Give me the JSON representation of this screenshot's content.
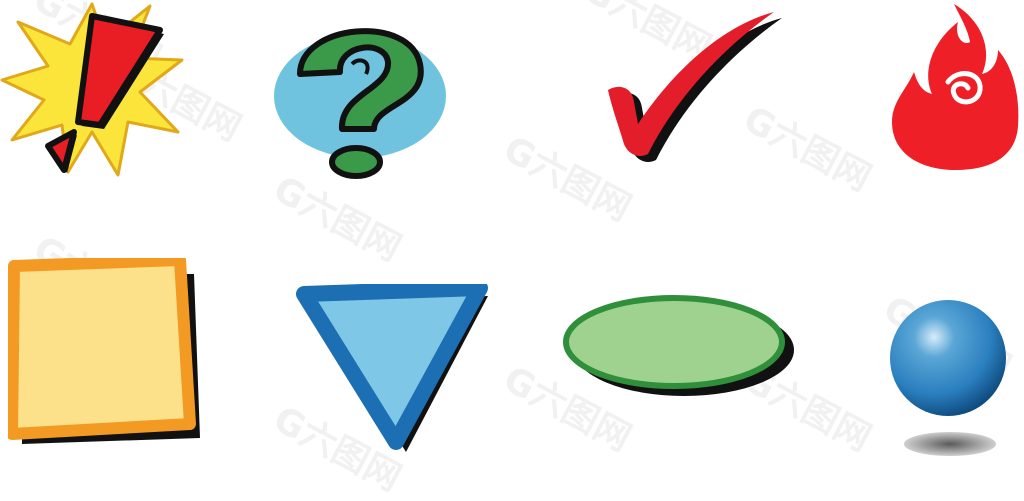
{
  "watermark": {
    "text": "G六图网"
  },
  "colors": {
    "burst_yellow": "#fbe53a",
    "burst_outline": "#e0a81a",
    "exclaim_red": "#e81e24",
    "question_green": "#3a9a4a",
    "question_bg_blue": "#6fc3de",
    "check_red": "#e41d2a",
    "flame_red": "#ee1f26",
    "square_fill": "#fde08a",
    "square_border": "#f29a23",
    "triangle_fill": "#7fc7e6",
    "triangle_border": "#1c6fb3",
    "ellipse_fill": "#9fd28f",
    "ellipse_border": "#2f8f3a",
    "sphere_blue": "#2a7fbf",
    "shadow": "#111111"
  },
  "icons": [
    "exclamation-burst-icon",
    "question-mark-icon",
    "checkmark-icon",
    "flame-icon",
    "square-icon",
    "triangle-icon",
    "ellipse-icon",
    "sphere-icon"
  ]
}
